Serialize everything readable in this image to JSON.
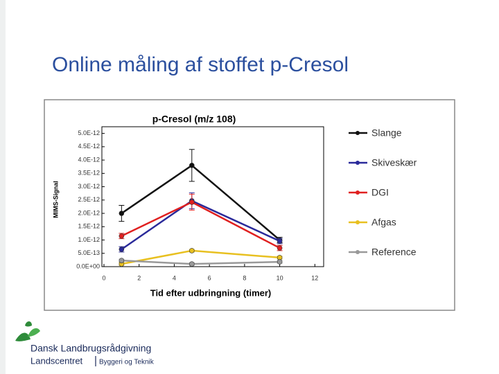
{
  "slide_title": "Online måling af stoffet p-Cresol",
  "logo": {
    "name": "Dansk Landbrugsrådgivning",
    "unit": "Landscentret",
    "department": "Byggeri og Teknik"
  },
  "chart_data": {
    "type": "line",
    "title": "p-Cresol (m/z 108)",
    "x_label": "Tid efter udbringning (timer)",
    "y_label": "MIMS-Signal",
    "x": [
      1,
      5,
      10
    ],
    "xlim": [
      0,
      12.5
    ],
    "xticks": [
      0,
      2,
      4,
      6,
      8,
      10,
      12
    ],
    "ylim": [
      0,
      5.25e-12
    ],
    "yticks": [
      {
        "value": 0,
        "label": "0.0E+00"
      },
      {
        "value": 5e-13,
        "label": "5.0E-13"
      },
      {
        "value": 1e-12,
        "label": "1.0E-12"
      },
      {
        "value": 1.5e-12,
        "label": "1.5E-12"
      },
      {
        "value": 2e-12,
        "label": "2.0E-12"
      },
      {
        "value": 2.5e-12,
        "label": "2.5E-12"
      },
      {
        "value": 3e-12,
        "label": "3.0E-12"
      },
      {
        "value": 3.5e-12,
        "label": "3.5E-12"
      },
      {
        "value": 4e-12,
        "label": "4.0E-12"
      },
      {
        "value": 4.5e-12,
        "label": "4.5E-12"
      },
      {
        "value": 5e-12,
        "label": "5.0E-12"
      }
    ],
    "legend": "right",
    "series": [
      {
        "name": "Slange",
        "color": "#111111",
        "values": [
          2e-12,
          3.8e-12,
          1e-12
        ],
        "errors": [
          3e-13,
          6e-13,
          1e-13
        ]
      },
      {
        "name": "Skiveskær",
        "color": "#2a2a9a",
        "values": [
          6.5e-13,
          2.47e-12,
          9.6e-13
        ],
        "errors": [
          1e-13,
          3e-13,
          1e-13
        ]
      },
      {
        "name": "DGI",
        "color": "#e02020",
        "values": [
          1.15e-12,
          2.42e-12,
          7e-13
        ],
        "errors": [
          1e-13,
          3e-13,
          1e-13
        ]
      },
      {
        "name": "Afgas",
        "color": "#e8c020",
        "values": [
          1e-13,
          6e-13,
          3.4e-13
        ],
        "errors": [
          5e-14,
          5e-14,
          5e-14
        ]
      },
      {
        "name": "Reference",
        "color": "#999999",
        "values": [
          2.3e-13,
          1e-13,
          1.8e-13
        ],
        "errors": [
          5e-14,
          5e-14,
          5e-14
        ]
      }
    ]
  }
}
